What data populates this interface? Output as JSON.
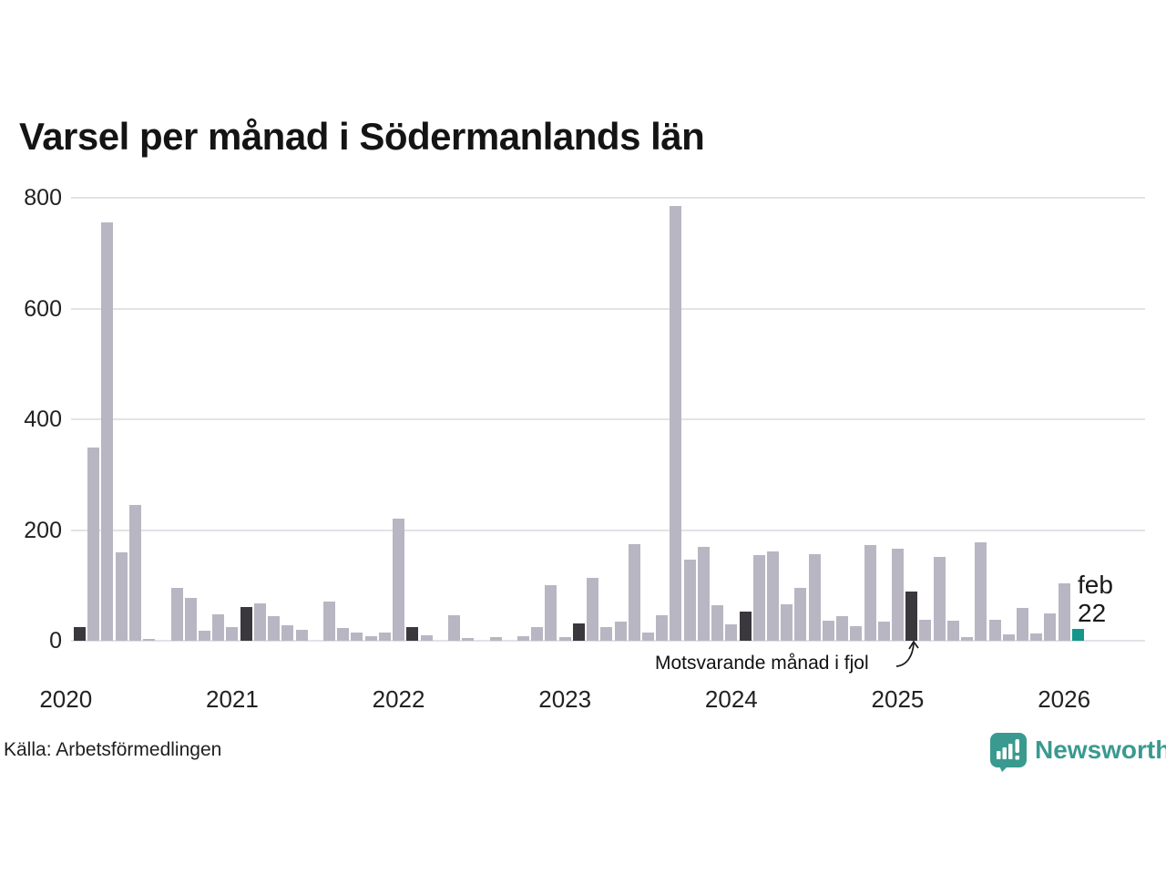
{
  "title": "Varsel per månad i Södermanlands län",
  "source": "Källa: Arbetsförmedlingen",
  "brand": {
    "name": "Newsworthy",
    "color": "#3a9a8f"
  },
  "annotation": {
    "text": "Motsvarande månad i fjol"
  },
  "current_point_label": {
    "line1": "feb",
    "line2": "22"
  },
  "colors": {
    "bar": "#b9b6c3",
    "comparison_bar": "#3a383c",
    "current_bar": "#14978a",
    "grid": "#e4e2e8",
    "title_text": "#141414",
    "axis_text": "#222222"
  },
  "chart_data": {
    "type": "bar",
    "title": "Varsel per månad i Södermanlands län",
    "xlabel": "",
    "ylabel": "",
    "ylim": [
      0,
      800
    ],
    "y_ticks": [
      0,
      200,
      400,
      600,
      800
    ],
    "grid": "horizontal",
    "legend_position": "none",
    "x_unit": "month",
    "x_range": "feb 2020 – feb 2026",
    "year_tick_labels": [
      "2020",
      "2021",
      "2022",
      "2023",
      "2024",
      "2025",
      "2026"
    ],
    "comparison_note": "Motsvarande månad i fjol",
    "comparison_indices": [
      0,
      12,
      24,
      36,
      48,
      60
    ],
    "current_index": 72,
    "current_label": "feb 22",
    "points": [
      {
        "m": "feb 2020",
        "v": 25
      },
      {
        "m": "mar 2020",
        "v": 349
      },
      {
        "m": "apr 2020",
        "v": 755
      },
      {
        "m": "maj 2020",
        "v": 160
      },
      {
        "m": "jun 2020",
        "v": 245
      },
      {
        "m": "jul 2020",
        "v": 4
      },
      {
        "m": "aug 2020",
        "v": 0
      },
      {
        "m": "sep 2020",
        "v": 95
      },
      {
        "m": "okt 2020",
        "v": 78
      },
      {
        "m": "nov 2020",
        "v": 18
      },
      {
        "m": "dec 2020",
        "v": 47
      },
      {
        "m": "jan 2021",
        "v": 25
      },
      {
        "m": "feb 2021",
        "v": 61
      },
      {
        "m": "mar 2021",
        "v": 68
      },
      {
        "m": "apr 2021",
        "v": 44
      },
      {
        "m": "maj 2021",
        "v": 28
      },
      {
        "m": "jun 2021",
        "v": 20
      },
      {
        "m": "jul 2021",
        "v": 0
      },
      {
        "m": "aug 2021",
        "v": 71
      },
      {
        "m": "sep 2021",
        "v": 23
      },
      {
        "m": "okt 2021",
        "v": 14
      },
      {
        "m": "nov 2021",
        "v": 9
      },
      {
        "m": "dec 2021",
        "v": 14
      },
      {
        "m": "jan 2022",
        "v": 221
      },
      {
        "m": "feb 2022",
        "v": 24
      },
      {
        "m": "mar 2022",
        "v": 10
      },
      {
        "m": "apr 2022",
        "v": 0
      },
      {
        "m": "maj 2022",
        "v": 46
      },
      {
        "m": "jun 2022",
        "v": 5
      },
      {
        "m": "jul 2022",
        "v": 0
      },
      {
        "m": "aug 2022",
        "v": 7
      },
      {
        "m": "sep 2022",
        "v": 0
      },
      {
        "m": "okt 2022",
        "v": 8
      },
      {
        "m": "nov 2022",
        "v": 24
      },
      {
        "m": "dec 2022",
        "v": 100
      },
      {
        "m": "jan 2023",
        "v": 7
      },
      {
        "m": "feb 2023",
        "v": 31
      },
      {
        "m": "mar 2023",
        "v": 113
      },
      {
        "m": "apr 2023",
        "v": 25
      },
      {
        "m": "maj 2023",
        "v": 34
      },
      {
        "m": "jun 2023",
        "v": 174
      },
      {
        "m": "jul 2023",
        "v": 15
      },
      {
        "m": "aug 2023",
        "v": 46
      },
      {
        "m": "sep 2023",
        "v": 785
      },
      {
        "m": "okt 2023",
        "v": 147
      },
      {
        "m": "nov 2023",
        "v": 170
      },
      {
        "m": "dec 2023",
        "v": 65
      },
      {
        "m": "jan 2024",
        "v": 30
      },
      {
        "m": "feb 2024",
        "v": 53
      },
      {
        "m": "mar 2024",
        "v": 154
      },
      {
        "m": "apr 2024",
        "v": 162
      },
      {
        "m": "maj 2024",
        "v": 66
      },
      {
        "m": "jun 2024",
        "v": 96
      },
      {
        "m": "jul 2024",
        "v": 156
      },
      {
        "m": "aug 2024",
        "v": 36
      },
      {
        "m": "sep 2024",
        "v": 44
      },
      {
        "m": "okt 2024",
        "v": 26
      },
      {
        "m": "nov 2024",
        "v": 173
      },
      {
        "m": "dec 2024",
        "v": 34
      },
      {
        "m": "jan 2025",
        "v": 166
      },
      {
        "m": "feb 2025",
        "v": 89
      },
      {
        "m": "mar 2025",
        "v": 38
      },
      {
        "m": "apr 2025",
        "v": 151
      },
      {
        "m": "maj 2025",
        "v": 36
      },
      {
        "m": "jun 2025",
        "v": 6
      },
      {
        "m": "jul 2025",
        "v": 178
      },
      {
        "m": "aug 2025",
        "v": 38
      },
      {
        "m": "sep 2025",
        "v": 12
      },
      {
        "m": "okt 2025",
        "v": 60
      },
      {
        "m": "nov 2025",
        "v": 13
      },
      {
        "m": "dec 2025",
        "v": 49
      },
      {
        "m": "jan 2026",
        "v": 103
      },
      {
        "m": "feb 2026",
        "v": 22
      }
    ]
  }
}
